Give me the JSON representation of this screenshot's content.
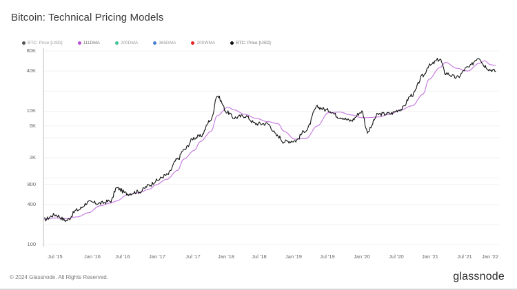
{
  "header": {
    "title": "Bitcoin: Technical Pricing Models"
  },
  "legend": [
    {
      "label": "BTC: Price [USD]",
      "color": "#555555",
      "dim": true
    },
    {
      "label": "111DMA",
      "color": "#b84fd6",
      "dim": false
    },
    {
      "label": "200DMA",
      "color": "#3fc19a",
      "dim": true
    },
    {
      "label": "365DMA",
      "color": "#4a7fd0",
      "dim": true
    },
    {
      "label": "200WMA",
      "color": "#e02424",
      "dim": true
    },
    {
      "label": "BTC: Price [USD]",
      "color": "#111111",
      "dim": false
    }
  ],
  "footer": {
    "copyright": "© 2024 Glassnode. All Rights Reserved.",
    "logo": "glassnode"
  },
  "colors": {
    "price": "#111111",
    "dma111": "#c77ee0",
    "grid": "#f1f1f1",
    "axis": "#c8c8c8"
  },
  "chart_data": {
    "type": "line",
    "title": "Bitcoin: Technical Pricing Models",
    "xlabel": "",
    "ylabel": "",
    "yscale": "log",
    "ylim": [
      100,
      80000
    ],
    "y_ticks": [
      "80K",
      "40K",
      "10K",
      "6K",
      "2K",
      "800",
      "400",
      "100"
    ],
    "y_tick_values": [
      80000,
      40000,
      10000,
      6000,
      2000,
      800,
      400,
      100
    ],
    "x_ticks": [
      "Jul '15",
      "Jan '16",
      "Jul '16",
      "Jan '17",
      "Jul '17",
      "Jan '18",
      "Jul '18",
      "Jan '19",
      "Jul '19",
      "Jan '20",
      "Jul '20",
      "Jan '21",
      "Jul '21",
      "Jan '22"
    ],
    "grid": true,
    "legend_position": "top-left",
    "x": [
      "2015-05",
      "2015-07",
      "2015-09",
      "2015-11",
      "2016-01",
      "2016-03",
      "2016-05",
      "2016-06",
      "2016-08",
      "2016-10",
      "2016-12",
      "2017-01",
      "2017-03",
      "2017-05",
      "2017-06",
      "2017-08",
      "2017-09",
      "2017-11",
      "2017-12",
      "2018-02",
      "2018-03",
      "2018-05",
      "2018-07",
      "2018-09",
      "2018-11",
      "2018-12",
      "2019-02",
      "2019-04",
      "2019-06",
      "2019-08",
      "2019-10",
      "2019-12",
      "2020-02",
      "2020-03",
      "2020-05",
      "2020-07",
      "2020-09",
      "2020-11",
      "2021-01",
      "2021-02",
      "2021-04",
      "2021-05",
      "2021-07",
      "2021-09",
      "2021-11",
      "2021-12",
      "2022-01",
      "2022-02"
    ],
    "series": [
      {
        "name": "BTC: Price [USD]",
        "color": "#111111",
        "values": [
          237,
          280,
          230,
          330,
          430,
          415,
          450,
          700,
          580,
          620,
          780,
          900,
          1100,
          1900,
          2600,
          4000,
          4200,
          7500,
          17000,
          9500,
          8000,
          8500,
          6500,
          6500,
          4200,
          3500,
          3600,
          5200,
          11500,
          10300,
          8200,
          7200,
          9800,
          5000,
          9000,
          9200,
          10700,
          17500,
          34000,
          48000,
          60000,
          37000,
          32000,
          45000,
          64000,
          48000,
          42000,
          40000
        ]
      },
      {
        "name": "111DMA",
        "color": "#c77ee0",
        "values": [
          240,
          250,
          245,
          260,
          300,
          380,
          420,
          450,
          560,
          600,
          680,
          780,
          950,
          1300,
          1900,
          2600,
          3500,
          5000,
          8500,
          11500,
          10500,
          9000,
          7800,
          7000,
          6500,
          5000,
          3800,
          3900,
          6000,
          9500,
          9700,
          8800,
          8000,
          8000,
          8200,
          9000,
          10500,
          12000,
          18000,
          30000,
          45000,
          54000,
          44000,
          40000,
          52000,
          57000,
          50000,
          48000
        ]
      }
    ]
  }
}
